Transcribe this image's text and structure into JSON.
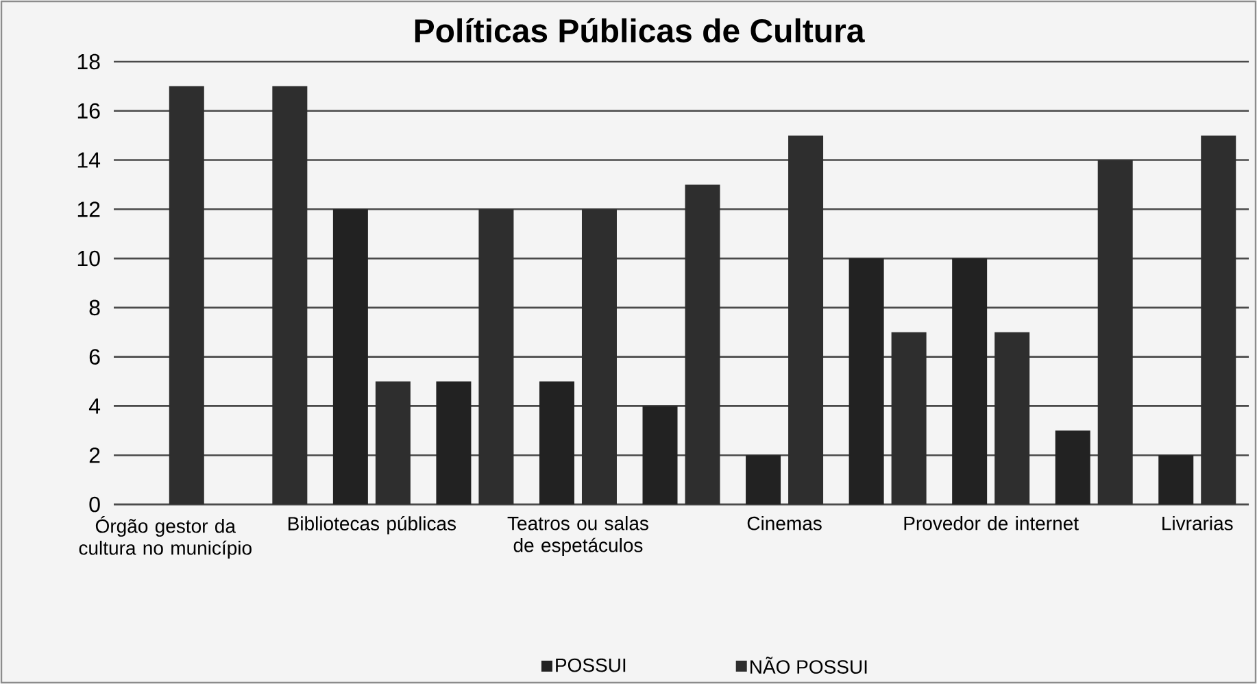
{
  "chart_data": {
    "type": "bar",
    "title": "Políticas Públicas de Cultura",
    "categories": [
      "Órgão gestor da cultura no município",
      null,
      "Bibliotecas públicas",
      null,
      "Teatros ou salas de espetáculos",
      null,
      "Cinemas",
      null,
      "Provedor de internet",
      null,
      "Livrarias"
    ],
    "series": [
      {
        "name": "POSSUI",
        "color": "#222222",
        "values": [
          0,
          0,
          12,
          5,
          5,
          4,
          2,
          10,
          10,
          3,
          2
        ]
      },
      {
        "name": "NÃO POSSUI",
        "color": "#2e2e2e",
        "values": [
          17,
          17,
          5,
          12,
          12,
          13,
          15,
          7,
          7,
          14,
          15
        ]
      }
    ],
    "ylim": [
      0,
      18
    ],
    "yticks": [
      0,
      2,
      4,
      6,
      8,
      10,
      12,
      14,
      16,
      18
    ],
    "grid": "y",
    "legend": "bottom"
  }
}
